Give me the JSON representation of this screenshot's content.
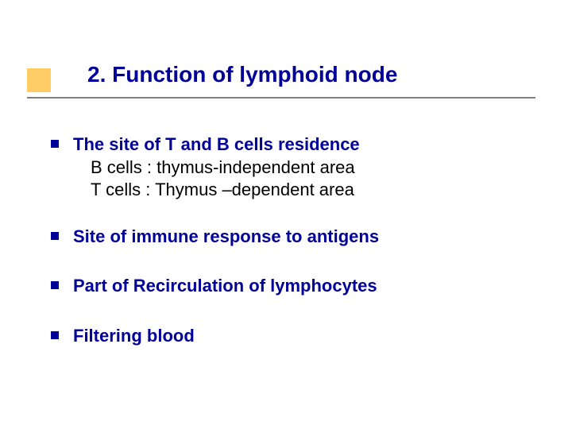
{
  "title": "2. Function of lymphoid node",
  "colors": {
    "accent_square": "#ffcc66",
    "heading_text": "#000099",
    "underline": "#808080",
    "bullet_square": "#000099",
    "bold_text": "#000099",
    "sub_text": "#000000",
    "background": "#ffffff"
  },
  "typography": {
    "title_fontsize_pt": 28,
    "body_fontsize_pt": 22,
    "font_family": "Verdana"
  },
  "bullets": [
    {
      "text": "The site of  T and B cells residence",
      "sublines": [
        "B cells : thymus-independent area",
        "T cells : Thymus –dependent area"
      ]
    },
    {
      "text": "Site of  immune response to antigens",
      "sublines": []
    },
    {
      "text": "Part of Recirculation of lymphocytes",
      "sublines": []
    },
    {
      "text": "Filtering  blood",
      "sublines": []
    }
  ]
}
